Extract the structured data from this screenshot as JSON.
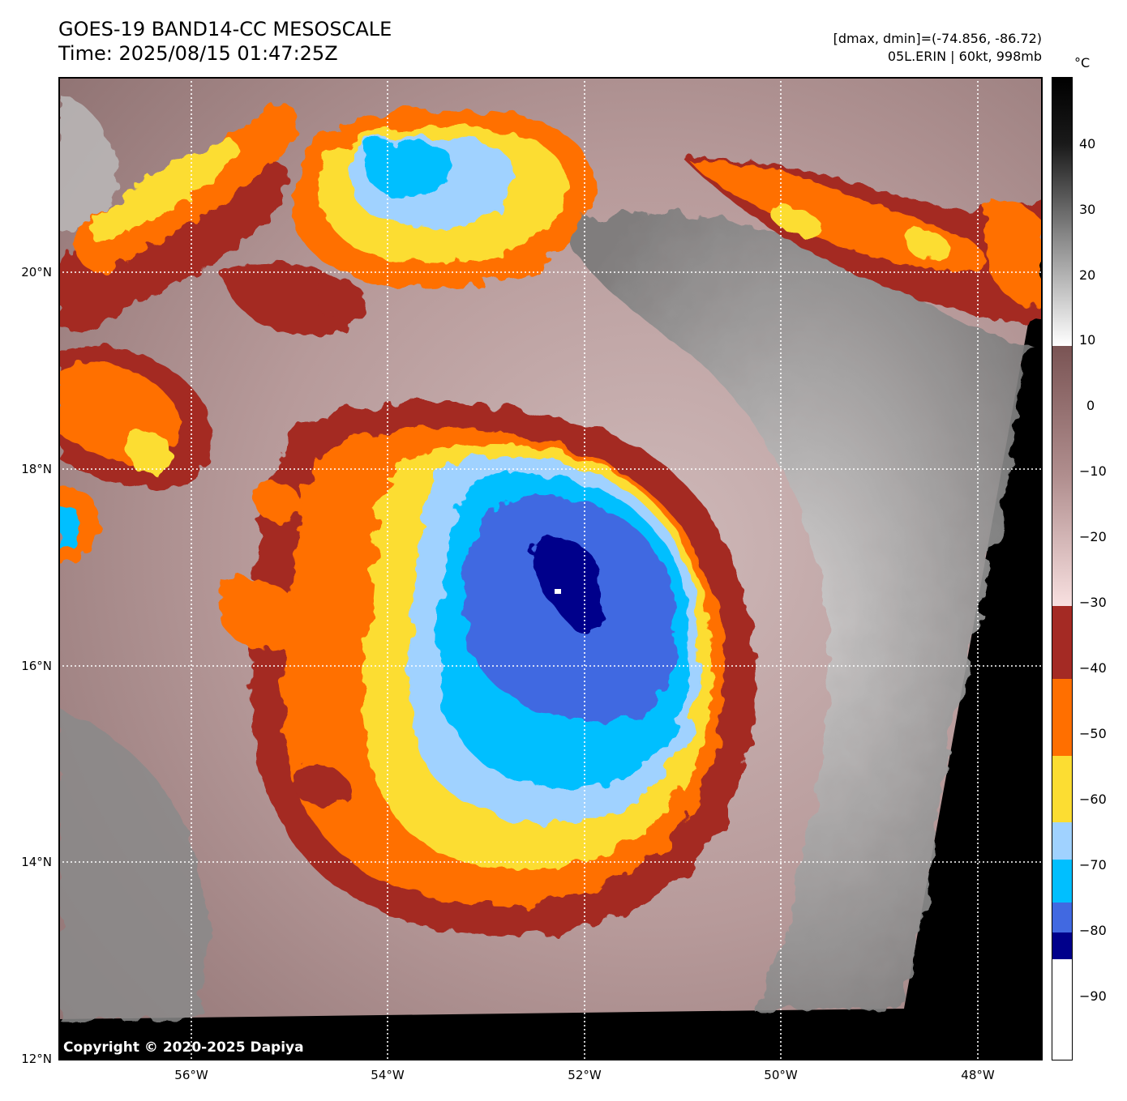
{
  "header": {
    "title": "GOES-19 BAND14-CC MESOSCALE",
    "time": "Time: 2025/08/15 01:47:25Z",
    "range": "[dmax, dmin]=(-74.856, -86.72)",
    "storm": "05L.ERIN | 60kt, 998mb"
  },
  "map": {
    "lat_labels": [
      "20°N",
      "18°N",
      "16°N",
      "14°N",
      "12°N"
    ],
    "lon_labels": [
      "56°W",
      "54°W",
      "52°W",
      "50°W",
      "48°W"
    ]
  },
  "colorbar": {
    "unit": "°C",
    "labels": [
      "40",
      "30",
      "20",
      "10",
      "0",
      "−10",
      "−20",
      "−30",
      "−40",
      "−50",
      "−60",
      "−70",
      "−80",
      "−90"
    ],
    "stops": [
      {
        "to": -90,
        "color": "#ffffff"
      },
      {
        "to": -86,
        "color": "#00008b"
      },
      {
        "to": -80,
        "color": "#4169e1"
      },
      {
        "to": -75,
        "color": "#00bfff"
      },
      {
        "to": -70,
        "color": "#a0d2ff"
      },
      {
        "to": -60,
        "color": "#fcdd32"
      },
      {
        "to": -50,
        "color": "#ff6f00"
      },
      {
        "to": -40,
        "color": "#a42a24"
      },
      {
        "to": -30,
        "color": "#f8dede"
      },
      {
        "to": 0,
        "color": "#8d6868"
      },
      {
        "to": 10,
        "color": "#ffffff"
      },
      {
        "to": 48,
        "color": "#000000"
      }
    ]
  },
  "footer": {
    "copyright": "Copyright © 2020-2025 Dapiya"
  }
}
